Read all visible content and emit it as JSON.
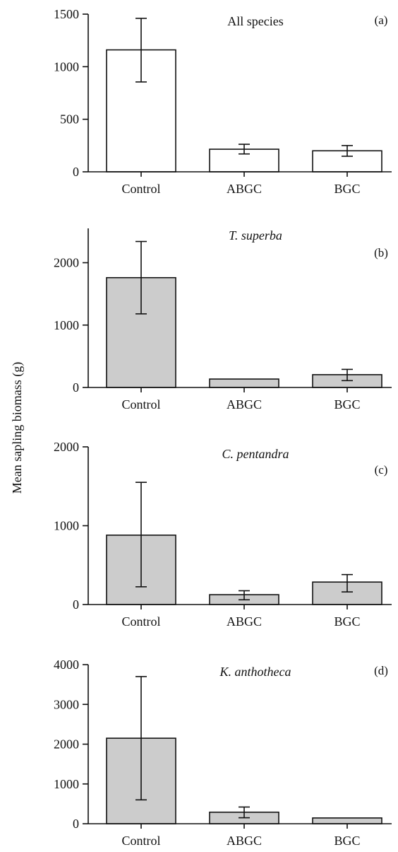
{
  "figure": {
    "ylabel": "Mean sapling biomass (g)"
  },
  "chart_data": [
    {
      "type": "bar",
      "title": "All species",
      "title_style": "normal",
      "panel_letter": "(a)",
      "categories": [
        "Control",
        "ABGC",
        "BGC"
      ],
      "values": [
        1160,
        215,
        200
      ],
      "error_upper": [
        1460,
        262,
        250
      ],
      "error_lower": [
        855,
        170,
        148
      ],
      "ylim": [
        0,
        1500
      ],
      "yticks": [
        0,
        500,
        1000,
        1500
      ],
      "bar_color": "#ffffff",
      "edge_color": "#111111"
    },
    {
      "type": "bar",
      "title": "T. superba",
      "title_style": "italic",
      "panel_letter": "(b)",
      "categories": [
        "Control",
        "ABGC",
        "BGC"
      ],
      "values": [
        1760,
        135,
        205
      ],
      "error_upper": [
        2340,
        135,
        290
      ],
      "error_lower": [
        1180,
        135,
        110
      ],
      "ylim": [
        0,
        2550
      ],
      "yticks": [
        0,
        1000,
        2000
      ],
      "bar_color": "#cccccc",
      "edge_color": "#111111"
    },
    {
      "type": "bar",
      "title": "C. pentandra",
      "title_style": "italic",
      "panel_letter": "(c)",
      "categories": [
        "Control",
        "ABGC",
        "BGC"
      ],
      "values": [
        880,
        125,
        285
      ],
      "error_upper": [
        1550,
        175,
        380
      ],
      "error_lower": [
        225,
        60,
        160
      ],
      "ylim": [
        0,
        2000
      ],
      "yticks": [
        0,
        1000,
        2000
      ],
      "bar_color": "#cccccc",
      "edge_color": "#111111"
    },
    {
      "type": "bar",
      "title": "K. anthotheca",
      "title_style": "italic",
      "panel_letter": "(d)",
      "categories": [
        "Control",
        "ABGC",
        "BGC"
      ],
      "values": [
        2150,
        290,
        145
      ],
      "error_upper": [
        3700,
        420,
        145
      ],
      "error_lower": [
        600,
        150,
        145
      ],
      "ylim": [
        0,
        4000
      ],
      "yticks": [
        0,
        1000,
        2000,
        3000,
        4000
      ],
      "bar_color": "#cccccc",
      "edge_color": "#111111"
    }
  ]
}
